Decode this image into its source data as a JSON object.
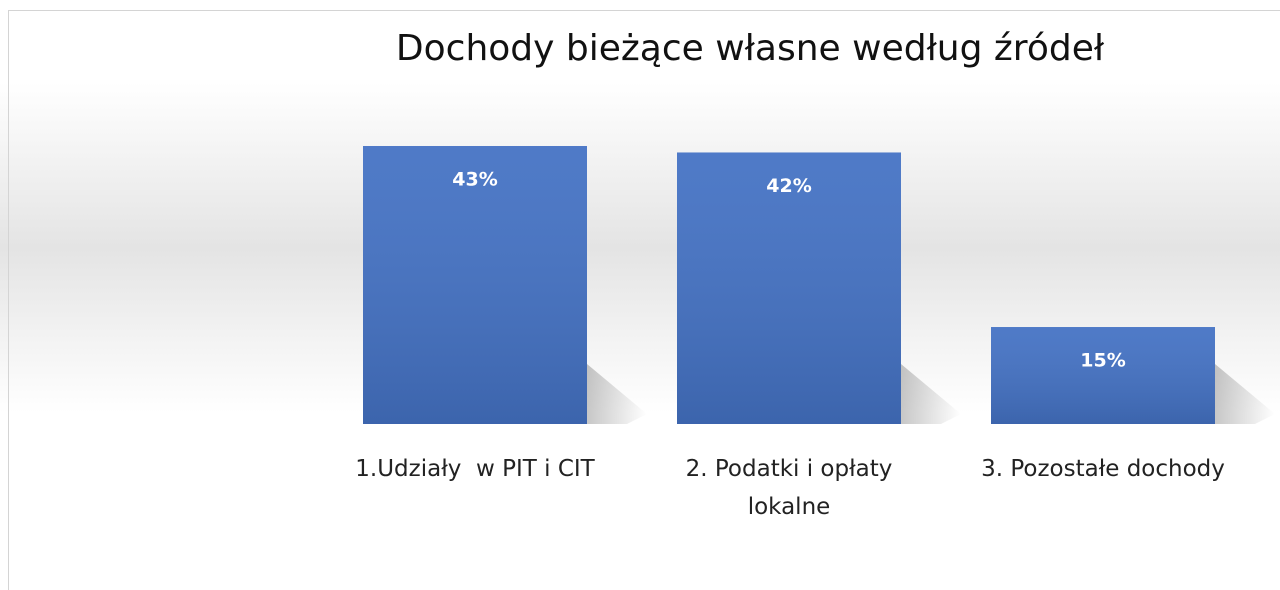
{
  "chart_data": {
    "type": "bar",
    "title": "Dochody bieżące własne według źródeł",
    "categories": [
      "1.Udziały  w PIT i CIT",
      "2. Podatki i opłaty lokalne",
      "3. Pozostałe dochody"
    ],
    "values": [
      43,
      42,
      15
    ],
    "value_labels": [
      "43%",
      "42%",
      "15%"
    ],
    "color": "#4472c4"
  }
}
